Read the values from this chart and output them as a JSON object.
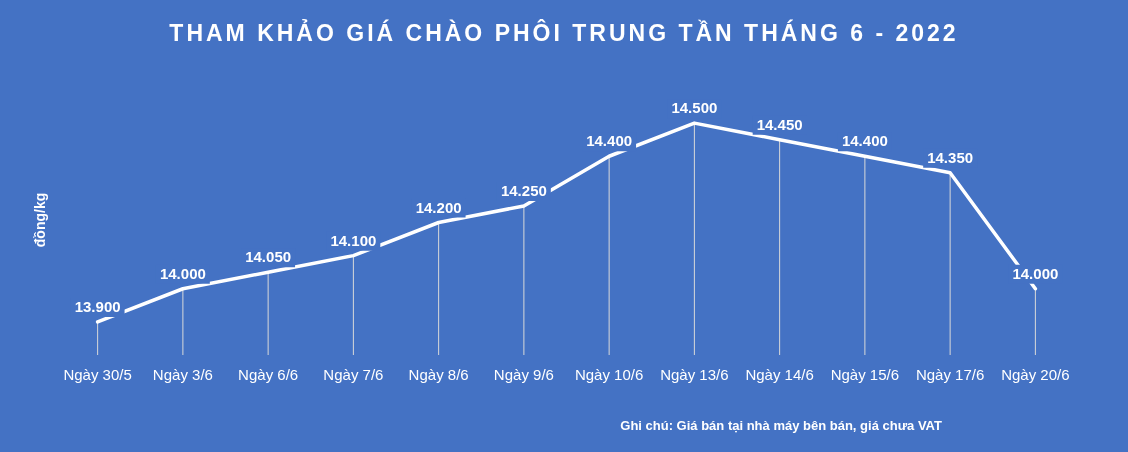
{
  "chart_data": {
    "type": "line",
    "title": "THAM KHẢO GIÁ CHÀO PHÔI TRUNG TẦN THÁNG 6 - 2022",
    "ylabel": "đồng/kg",
    "categories": [
      "Ngày 30/5",
      "Ngày 3/6",
      "Ngày 6/6",
      "Ngày 7/6",
      "Ngày 8/6",
      "Ngày 9/6",
      "Ngày 10/6",
      "Ngày 13/6",
      "Ngày 14/6",
      "Ngày 15/6",
      "Ngày 17/6",
      "Ngày 20/6"
    ],
    "series": [
      {
        "color": "#ffffff",
        "values": [
          13900,
          14000,
          14050,
          14100,
          14200,
          14250,
          14400,
          14500,
          14450,
          14400,
          14350,
          14000
        ],
        "value_labels": [
          "13.900",
          "14.000",
          "14.050",
          "14.100",
          "14.200",
          "14.250",
          "14.400",
          "14.500",
          "14.450",
          "14.400",
          "14.350",
          "14.000"
        ]
      }
    ],
    "annotations": [
      "Ghi chú: Giá bán tại nhà máy bên bán, giá chưa VAT"
    ],
    "tick_labels": "x",
    "grid": "x",
    "legend": false,
    "line_style": "solid"
  }
}
